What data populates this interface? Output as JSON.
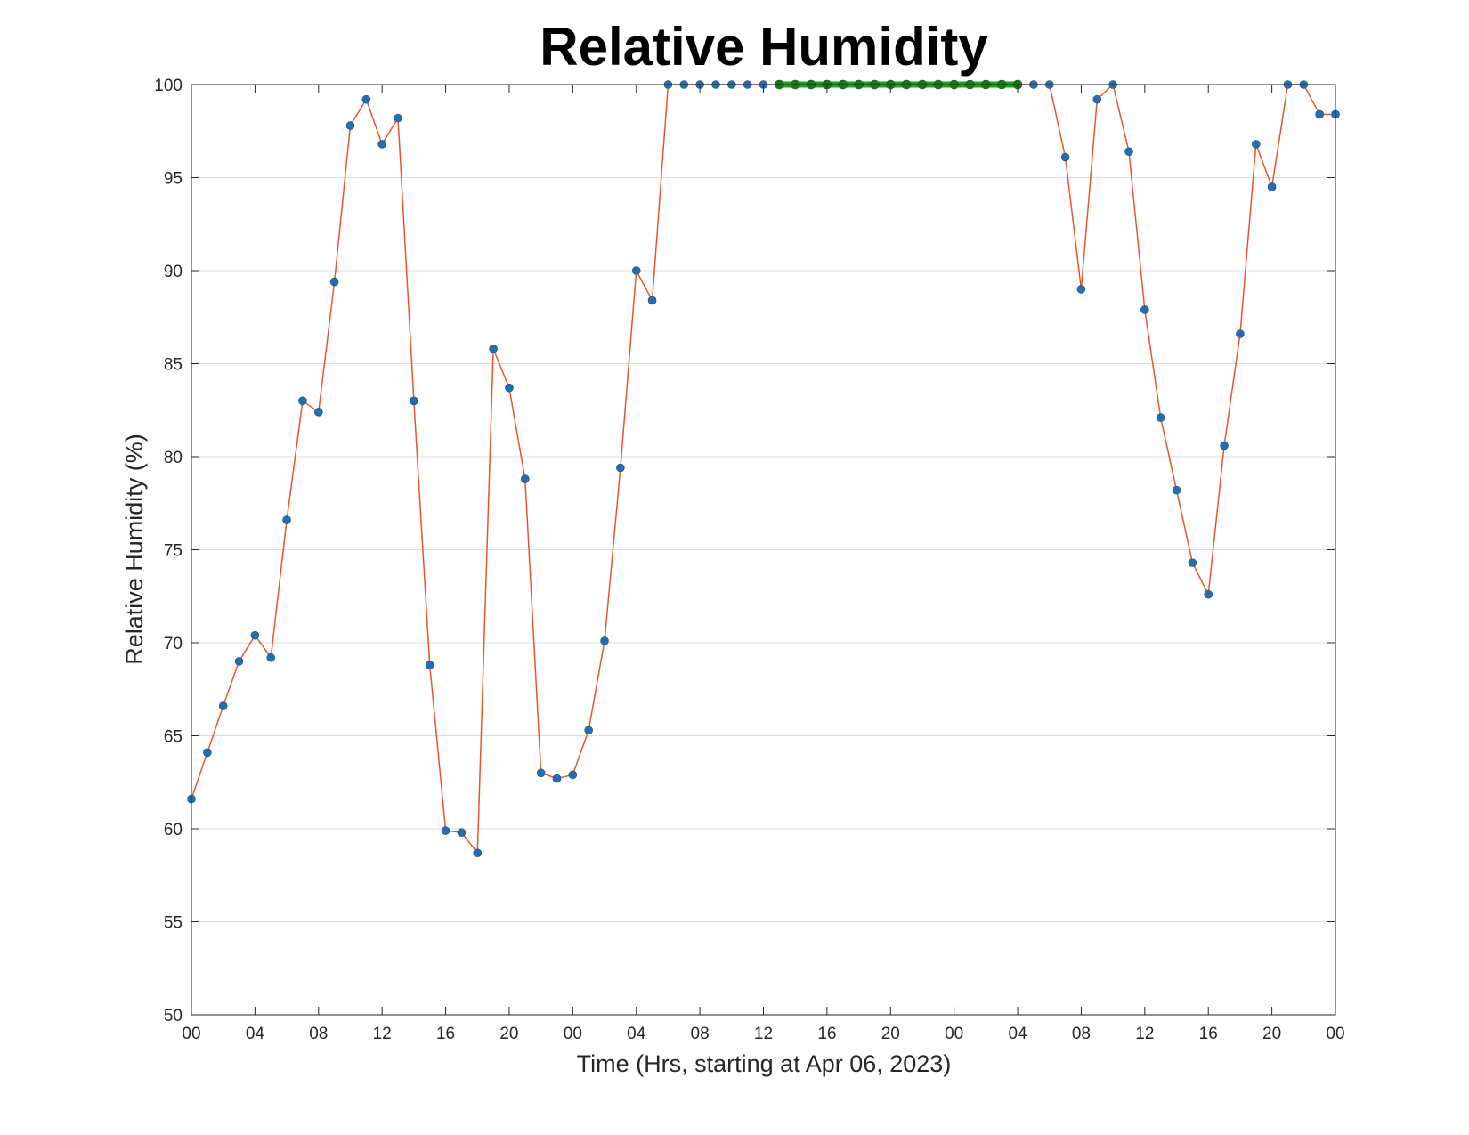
{
  "chart_data": {
    "type": "line",
    "title": "Relative Humidity",
    "xlabel": "Time (Hrs, starting at Apr 06, 2023)",
    "ylabel": "Relative Humidity (%)",
    "ylim": [
      50,
      100
    ],
    "yticks": [
      50,
      55,
      60,
      65,
      70,
      75,
      80,
      85,
      90,
      95,
      100
    ],
    "xlim": [
      "2023-04-06 00:00",
      "2023-04-09 00:00"
    ],
    "xticks": [
      {
        "time": "2023-04-06 00:00",
        "label": "00"
      },
      {
        "time": "2023-04-06 04:00",
        "label": "04"
      },
      {
        "time": "2023-04-06 08:00",
        "label": "08"
      },
      {
        "time": "2023-04-06 12:00",
        "label": "12"
      },
      {
        "time": "2023-04-06 16:00",
        "label": "16"
      },
      {
        "time": "2023-04-06 20:00",
        "label": "20"
      },
      {
        "time": "2023-04-07 00:00",
        "label": "00"
      },
      {
        "time": "2023-04-07 04:00",
        "label": "04"
      },
      {
        "time": "2023-04-07 08:00",
        "label": "08"
      },
      {
        "time": "2023-04-07 12:00",
        "label": "12"
      },
      {
        "time": "2023-04-07 16:00",
        "label": "16"
      },
      {
        "time": "2023-04-07 20:00",
        "label": "20"
      },
      {
        "time": "2023-04-08 00:00",
        "label": "00"
      },
      {
        "time": "2023-04-08 04:00",
        "label": "04"
      },
      {
        "time": "2023-04-08 08:00",
        "label": "08"
      },
      {
        "time": "2023-04-08 12:00",
        "label": "12"
      },
      {
        "time": "2023-04-08 16:00",
        "label": "16"
      },
      {
        "time": "2023-04-08 20:00",
        "label": "20"
      },
      {
        "time": "2023-04-09 00:00",
        "label": "00"
      }
    ],
    "grid": "horizontal",
    "colors": {
      "line": "#e8552a",
      "marker": "#1f6fb2",
      "highlight": "#1aa31a",
      "highlight_marker": "#137a13",
      "grid": "#dcdcdc"
    },
    "series": [
      {
        "x": [
          "2023-04-06 00:00",
          "2023-04-06 01:00",
          "2023-04-06 02:00",
          "2023-04-06 03:00",
          "2023-04-06 04:00",
          "2023-04-06 05:00",
          "2023-04-06 06:00",
          "2023-04-06 07:00",
          "2023-04-06 08:00",
          "2023-04-06 09:00",
          "2023-04-06 10:00",
          "2023-04-06 11:00",
          "2023-04-06 12:00",
          "2023-04-06 13:00",
          "2023-04-06 14:00",
          "2023-04-06 15:00",
          "2023-04-06 16:00",
          "2023-04-06 17:00",
          "2023-04-06 18:00",
          "2023-04-06 19:00",
          "2023-04-06 20:00",
          "2023-04-06 21:00",
          "2023-04-06 22:00",
          "2023-04-06 23:00",
          "2023-04-07 00:00",
          "2023-04-07 01:00",
          "2023-04-07 02:00",
          "2023-04-07 03:00",
          "2023-04-07 04:00",
          "2023-04-07 05:00",
          "2023-04-07 06:00",
          "2023-04-07 07:00",
          "2023-04-07 08:00",
          "2023-04-07 09:00",
          "2023-04-07 10:00",
          "2023-04-07 11:00",
          "2023-04-07 12:00",
          "2023-04-07 13:00",
          "2023-04-07 14:00",
          "2023-04-07 15:00",
          "2023-04-07 16:00",
          "2023-04-07 17:00",
          "2023-04-07 18:00",
          "2023-04-07 19:00",
          "2023-04-07 20:00",
          "2023-04-07 21:00",
          "2023-04-07 22:00",
          "2023-04-07 23:00",
          "2023-04-08 00:00",
          "2023-04-08 01:00",
          "2023-04-08 02:00",
          "2023-04-08 03:00",
          "2023-04-08 04:00",
          "2023-04-08 05:00",
          "2023-04-08 06:00",
          "2023-04-08 07:00",
          "2023-04-08 08:00",
          "2023-04-08 09:00",
          "2023-04-08 10:00",
          "2023-04-08 11:00",
          "2023-04-08 12:00",
          "2023-04-08 13:00",
          "2023-04-08 14:00",
          "2023-04-08 15:00",
          "2023-04-08 16:00",
          "2023-04-08 17:00",
          "2023-04-08 18:00",
          "2023-04-08 19:00",
          "2023-04-08 20:00",
          "2023-04-08 21:00",
          "2023-04-08 22:00",
          "2023-04-08 23:00",
          "2023-04-09 00:00"
        ],
        "values": [
          61.6,
          64.1,
          66.6,
          69.0,
          70.4,
          69.2,
          76.6,
          83.0,
          82.4,
          89.4,
          97.8,
          99.2,
          96.8,
          98.2,
          83.0,
          68.8,
          59.9,
          59.8,
          58.7,
          85.8,
          83.7,
          78.8,
          63.0,
          62.7,
          62.9,
          65.3,
          70.1,
          79.4,
          90.0,
          88.4,
          100,
          100,
          100,
          100,
          100,
          100,
          100,
          100,
          100,
          100,
          100,
          100,
          100,
          100,
          100,
          100,
          100,
          100,
          100,
          100,
          100,
          100,
          100,
          100,
          100,
          96.1,
          89.0,
          99.2,
          100,
          96.4,
          87.9,
          82.1,
          78.2,
          74.3,
          72.6,
          80.6,
          86.6,
          96.8,
          94.5,
          100,
          100,
          98.4,
          98.4
        ]
      }
    ],
    "highlight": {
      "x_start": "2023-04-07 13:00",
      "x_end": "2023-04-08 04:00",
      "value": 100
    }
  }
}
